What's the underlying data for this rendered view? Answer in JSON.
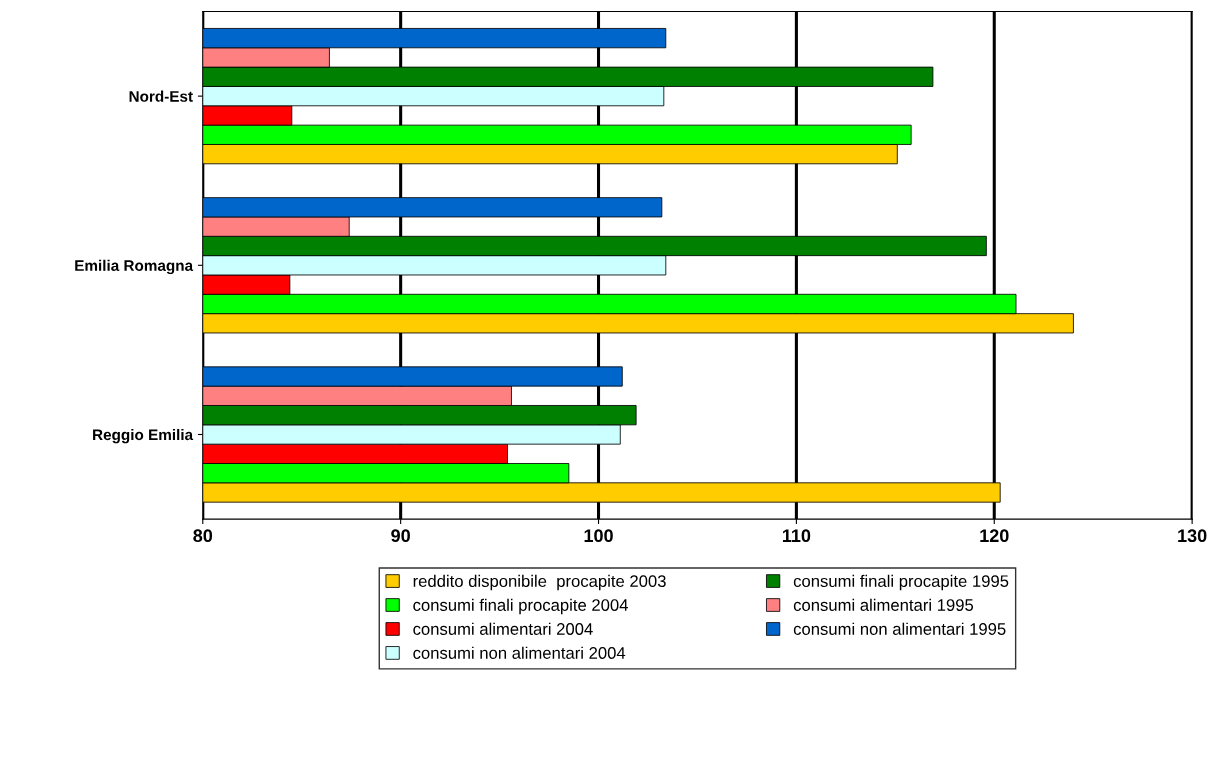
{
  "chart_data": {
    "type": "bar",
    "orientation": "horizontal",
    "categories": [
      "Nord-Est",
      "Emilia Romagna",
      "Reggio Emilia"
    ],
    "series": [
      {
        "name": "reddito disponibile  procapite 2003",
        "color": "#ffcc00",
        "values": [
          115.1,
          124.0,
          120.3
        ]
      },
      {
        "name": "consumi finali procapite 2004",
        "color": "#00ff00",
        "values": [
          115.8,
          121.1,
          98.5
        ]
      },
      {
        "name": "consumi alimentari 2004",
        "color": "#ff0000",
        "values": [
          84.5,
          84.4,
          95.4
        ]
      },
      {
        "name": "consumi non alimentari 2004",
        "color": "#ccffff",
        "values": [
          103.3,
          103.4,
          101.1
        ]
      },
      {
        "name": "consumi finali procapite 1995",
        "color": "#008000",
        "values": [
          116.9,
          119.6,
          101.9
        ]
      },
      {
        "name": "consumi alimentari 1995",
        "color": "#ff8080",
        "values": [
          86.4,
          87.4,
          95.6
        ]
      },
      {
        "name": "consumi non alimentari 1995",
        "color": "#0066cc",
        "values": [
          103.4,
          103.2,
          101.2
        ]
      }
    ],
    "xlim": [
      80,
      130
    ],
    "xticks": [
      80,
      90,
      100,
      110,
      120,
      130
    ],
    "grid": "x",
    "legend": "bottom"
  }
}
